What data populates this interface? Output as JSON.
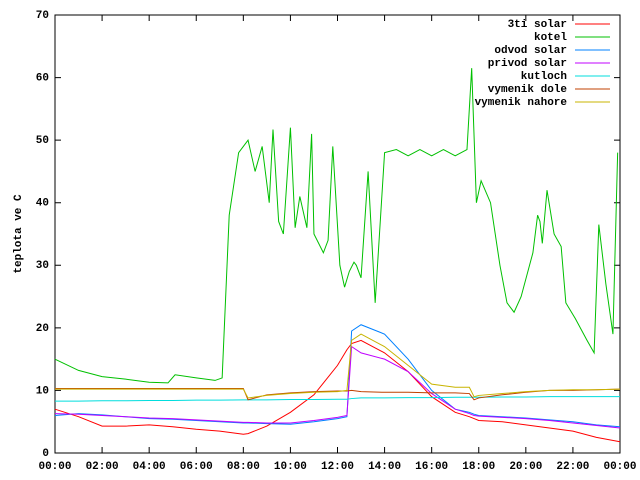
{
  "chart_data": {
    "type": "line",
    "ylabel": "teplota ve C",
    "xlim": [
      0,
      24
    ],
    "ylim": [
      0,
      70
    ],
    "xticks": [
      {
        "value": 0,
        "label": "00:00"
      },
      {
        "value": 2,
        "label": "02:00"
      },
      {
        "value": 4,
        "label": "04:00"
      },
      {
        "value": 6,
        "label": "06:00"
      },
      {
        "value": 8,
        "label": "08:00"
      },
      {
        "value": 10,
        "label": "10:00"
      },
      {
        "value": 12,
        "label": "12:00"
      },
      {
        "value": 14,
        "label": "14:00"
      },
      {
        "value": 16,
        "label": "16:00"
      },
      {
        "value": 18,
        "label": "18:00"
      },
      {
        "value": 20,
        "label": "20:00"
      },
      {
        "value": 22,
        "label": "22:00"
      },
      {
        "value": 24,
        "label": "00:00"
      }
    ],
    "yticks": [
      0,
      10,
      20,
      30,
      40,
      50,
      60,
      70
    ],
    "legend": "top-right",
    "x": [
      0,
      1,
      2,
      3,
      4,
      5,
      6,
      7,
      8,
      8.2,
      9,
      10,
      11,
      12,
      12.4,
      12.6,
      13,
      14,
      15,
      16,
      17,
      17.6,
      17.8,
      18,
      19,
      20,
      21,
      22,
      23,
      24
    ],
    "series": [
      {
        "name": "3ti solar",
        "color": "#ff0000",
        "values": [
          7,
          5.8,
          4.3,
          4.3,
          4.5,
          4.2,
          3.8,
          3.5,
          3.0,
          3.1,
          4.3,
          6.5,
          9.3,
          14,
          16.5,
          17.5,
          18,
          16,
          13,
          9,
          6.5,
          5.8,
          5.5,
          5.2,
          5,
          4.5,
          4,
          3.5,
          2.5,
          1.8
        ]
      },
      {
        "name": "kotel",
        "color": "#00c000",
        "x": [
          0,
          1,
          2,
          3,
          4,
          4.8,
          5.1,
          6,
          6.8,
          7.1,
          7.4,
          7.8,
          8.2,
          8.5,
          8.8,
          9.1,
          9.26,
          9.5,
          9.7,
          10.0,
          10.2,
          10.4,
          10.7,
          10.9,
          11.0,
          11.4,
          11.6,
          11.8,
          12.1,
          12.3,
          12.5,
          12.7,
          12.8,
          13.0,
          13.3,
          13.6,
          14.0,
          14.5,
          15.0,
          15.5,
          16.0,
          16.5,
          17.0,
          17.5,
          17.7,
          17.9,
          18.1,
          18.5,
          18.9,
          19.2,
          19.5,
          19.8,
          20.3,
          20.5,
          20.6,
          20.7,
          20.9,
          21.2,
          21.5,
          21.7,
          22.1,
          22.6,
          22.9,
          23.1,
          23.4,
          23.7,
          23.9
        ],
        "values": [
          15,
          13.2,
          12.2,
          11.8,
          11.3,
          11.2,
          12.5,
          12,
          11.6,
          12,
          38,
          48,
          50,
          45,
          49,
          40,
          51.7,
          37,
          35,
          52,
          36,
          41,
          36,
          51,
          35,
          32,
          34,
          49,
          30,
          26.5,
          29,
          30.5,
          30,
          28,
          45,
          24,
          48,
          48.5,
          47.5,
          48.5,
          47.5,
          48.5,
          47.5,
          48.5,
          61.5,
          40,
          43.5,
          40,
          30,
          24,
          22.5,
          25,
          32,
          38,
          37,
          33.5,
          42,
          35,
          33,
          24,
          21.5,
          18,
          16,
          36.5,
          27,
          19,
          48
        ]
      },
      {
        "name": "odvod solar",
        "color": "#0080ff",
        "values": [
          6,
          6.3,
          6.1,
          5.8,
          5.5,
          5.4,
          5.2,
          5,
          4.8,
          4.8,
          4.7,
          4.6,
          5,
          5.5,
          5.8,
          19.5,
          20.5,
          19,
          15,
          10,
          7,
          6.5,
          6.2,
          6,
          5.8,
          5.6,
          5.3,
          5,
          4.5,
          4.2
        ]
      },
      {
        "name": "privod solar",
        "color": "#c000ff",
        "values": [
          6.3,
          6.2,
          6,
          5.8,
          5.6,
          5.5,
          5.3,
          5.1,
          4.9,
          4.9,
          4.8,
          4.8,
          5.2,
          5.7,
          6,
          17,
          16,
          15,
          13,
          9.5,
          7,
          6.3,
          6,
          5.9,
          5.7,
          5.5,
          5.2,
          4.8,
          4.4,
          4
        ]
      },
      {
        "name": "kutloch",
        "color": "#00dddd",
        "values": [
          8.3,
          8.3,
          8.35,
          8.35,
          8.4,
          8.4,
          8.45,
          8.45,
          8.5,
          8.5,
          8.5,
          8.55,
          8.55,
          8.6,
          8.6,
          8.7,
          8.8,
          8.8,
          8.85,
          8.85,
          8.9,
          8.9,
          8.9,
          8.9,
          8.95,
          8.95,
          9,
          9,
          9,
          9
        ]
      },
      {
        "name": "vymenik dole",
        "color": "#c04000",
        "values": [
          10.3,
          10.3,
          10.3,
          10.3,
          10.3,
          10.3,
          10.3,
          10.3,
          10.3,
          8.5,
          9.3,
          9.6,
          9.8,
          9.9,
          9.9,
          10,
          9.8,
          9.7,
          9.7,
          9.6,
          9.6,
          9.5,
          8.5,
          8.8,
          9.3,
          9.7,
          10,
          10,
          10.1,
          10.2
        ]
      },
      {
        "name": "vymenik nahore",
        "color": "#c8b400",
        "values": [
          10.2,
          10.2,
          10.2,
          10.2,
          10.2,
          10.2,
          10.2,
          10.2,
          10.2,
          8.8,
          9.2,
          9.5,
          9.7,
          9.8,
          10,
          18,
          19,
          17,
          14,
          11,
          10.5,
          10.5,
          9,
          9.2,
          9.5,
          9.8,
          10,
          10.1,
          10.1,
          10.2
        ]
      }
    ]
  }
}
